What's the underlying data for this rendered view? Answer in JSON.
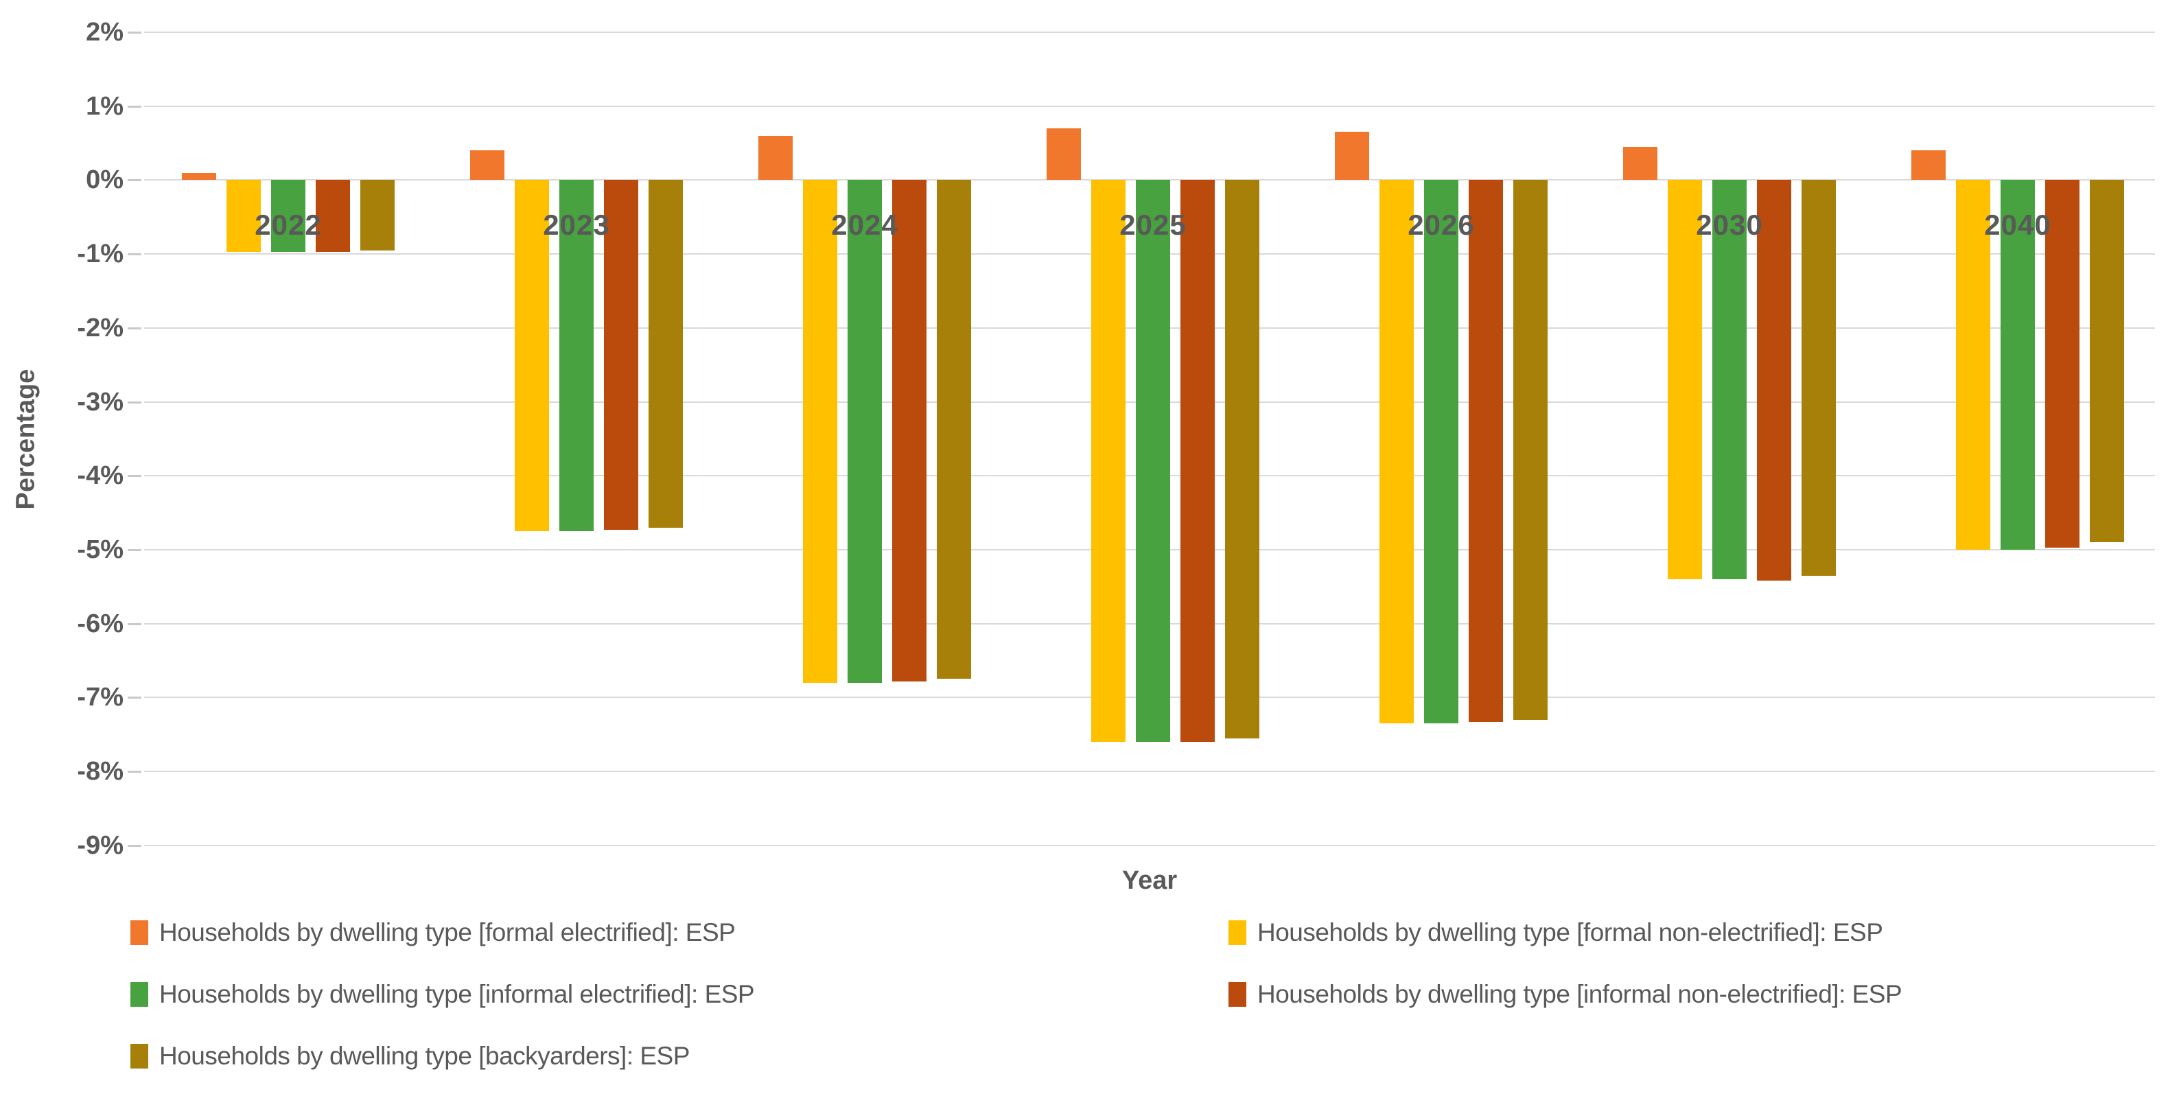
{
  "chart_data": {
    "type": "bar",
    "title": "",
    "xlabel": "Year",
    "ylabel": "Percentage",
    "categories": [
      "2022",
      "2023",
      "2024",
      "2025",
      "2026",
      "2030",
      "2040"
    ],
    "series": [
      {
        "name": "Households by dwelling type [formal electrified]: ESP",
        "color": "#F0772C",
        "values": [
          0.1,
          0.4,
          0.6,
          0.7,
          0.65,
          0.45,
          0.4
        ]
      },
      {
        "name": "Households by dwelling type [formal non-electrified]: ESP",
        "color": "#FFC000",
        "values": [
          -0.97,
          -4.75,
          -6.8,
          -7.6,
          -7.35,
          -5.4,
          -5.0
        ]
      },
      {
        "name": "Households by dwelling type [informal electrified]: ESP",
        "color": "#47A23F",
        "values": [
          -0.97,
          -4.75,
          -6.8,
          -7.6,
          -7.35,
          -5.4,
          -5.0
        ]
      },
      {
        "name": "Households by dwelling type [informal non-electrified]: ESP",
        "color": "#BB4A0D",
        "values": [
          -0.97,
          -4.73,
          -6.78,
          -7.6,
          -7.33,
          -5.42,
          -4.97
        ]
      },
      {
        "name": "Households by dwelling type [backyarders]: ESP",
        "color": "#A7800A",
        "values": [
          -0.95,
          -4.7,
          -6.75,
          -7.55,
          -7.3,
          -5.35,
          -4.9
        ]
      }
    ],
    "ylim": [
      -9,
      2
    ],
    "yticks": [
      2,
      1,
      0,
      -1,
      -2,
      -3,
      -4,
      -5,
      -6,
      -7,
      -8,
      -9
    ],
    "ytick_format": "percent",
    "grid": true,
    "legend_position": "bottom"
  },
  "colors": {
    "gridline": "#D9D9D9",
    "tick": "#C9C9C9",
    "text": "#595959",
    "background": "#FFFFFF"
  }
}
